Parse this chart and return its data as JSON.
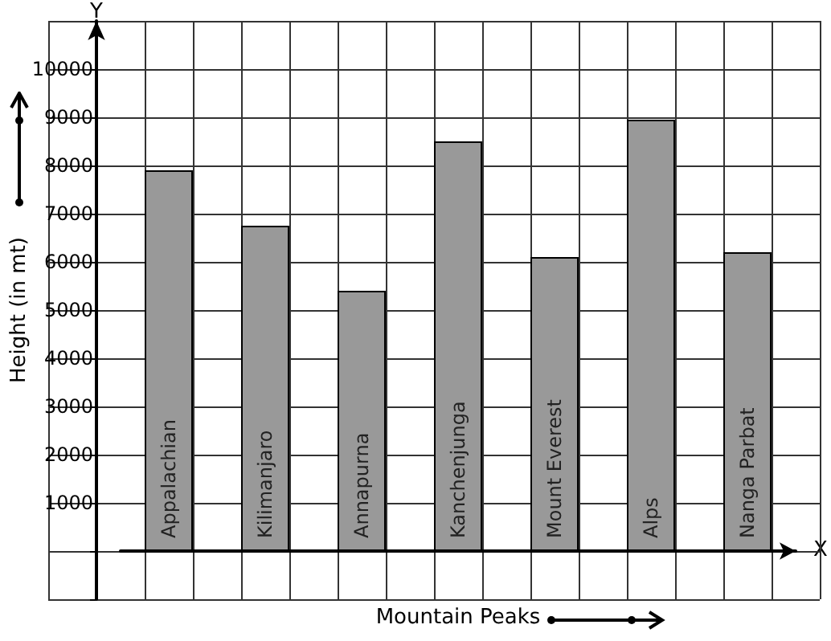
{
  "chart_data": {
    "type": "bar",
    "xlabel": "Mountain Peaks",
    "ylabel": "Height (in mt)",
    "categories": [
      "Appalachian",
      "Kilimanjaro",
      "Annapurna",
      "Kanchenjunga",
      "Mount Everest",
      "Alps",
      "Nanga Parbat"
    ],
    "values": [
      7900,
      6750,
      5400,
      8500,
      6100,
      8950,
      6200
    ],
    "color": "#999999",
    "ylim": [
      -1000,
      11000
    ],
    "yticks": [
      {
        "value": -1000,
        "label": null
      },
      {
        "value": 0,
        "label": null
      },
      1000,
      2000,
      3000,
      4000,
      5000,
      6000,
      7000,
      8000,
      9000,
      10000,
      {
        "value": 11000,
        "label": null
      }
    ],
    "grid": true,
    "annotations": [
      "X",
      "Y"
    ]
  }
}
